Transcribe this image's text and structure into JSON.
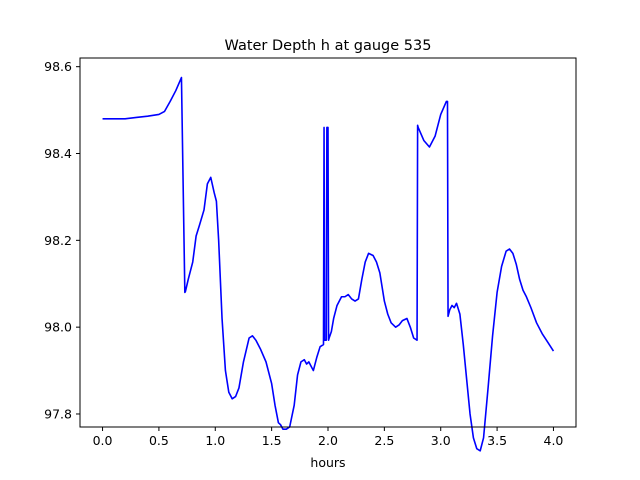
{
  "chart_data": {
    "type": "line",
    "title": "Water Depth h at gauge 535",
    "xlabel": "hours",
    "ylabel": "",
    "xlim": [
      -0.2,
      4.2
    ],
    "ylim": [
      97.77,
      98.62
    ],
    "x_ticks": [
      0.0,
      0.5,
      1.0,
      1.5,
      2.0,
      2.5,
      3.0,
      3.5,
      4.0
    ],
    "x_tick_labels": [
      "0.0",
      "0.5",
      "1.0",
      "1.5",
      "2.0",
      "2.5",
      "3.0",
      "3.5",
      "4.0"
    ],
    "y_ticks": [
      97.8,
      98.0,
      98.2,
      98.4,
      98.6
    ],
    "y_tick_labels": [
      "97.8",
      "98.0",
      "98.2",
      "98.4",
      "98.6"
    ],
    "grid": false,
    "legend": "none",
    "series": [
      {
        "color": "#0000ff",
        "x": [
          0.0,
          0.1,
          0.2,
          0.3,
          0.4,
          0.5,
          0.55,
          0.6,
          0.65,
          0.7,
          0.73,
          0.735,
          0.76,
          0.8,
          0.83,
          0.86,
          0.9,
          0.93,
          0.96,
          0.99,
          1.01,
          1.03,
          1.06,
          1.09,
          1.12,
          1.15,
          1.18,
          1.21,
          1.25,
          1.3,
          1.33,
          1.36,
          1.4,
          1.45,
          1.5,
          1.53,
          1.56,
          1.58,
          1.6,
          1.63,
          1.66,
          1.7,
          1.73,
          1.76,
          1.79,
          1.81,
          1.83,
          1.85,
          1.87,
          1.9,
          1.93,
          1.96,
          1.965,
          1.97,
          1.985,
          1.99,
          2.0,
          2.005,
          2.01,
          2.03,
          2.05,
          2.08,
          2.1,
          2.12,
          2.15,
          2.18,
          2.21,
          2.24,
          2.27,
          2.3,
          2.33,
          2.36,
          2.4,
          2.43,
          2.46,
          2.5,
          2.53,
          2.56,
          2.6,
          2.63,
          2.66,
          2.7,
          2.73,
          2.76,
          2.79,
          2.795,
          2.8,
          2.85,
          2.9,
          2.95,
          3.0,
          3.05,
          3.06,
          3.065,
          3.08,
          3.1,
          3.12,
          3.14,
          3.17,
          3.2,
          3.23,
          3.26,
          3.29,
          3.32,
          3.35,
          3.38,
          3.42,
          3.46,
          3.5,
          3.54,
          3.58,
          3.61,
          3.64,
          3.67,
          3.7,
          3.73,
          3.76,
          3.8,
          3.85,
          3.9,
          3.95,
          4.0
        ],
        "y": [
          98.48,
          98.48,
          98.48,
          98.483,
          98.486,
          98.49,
          98.497,
          98.52,
          98.545,
          98.575,
          98.08,
          98.082,
          98.11,
          98.15,
          98.21,
          98.235,
          98.27,
          98.33,
          98.345,
          98.31,
          98.29,
          98.2,
          98.02,
          97.9,
          97.85,
          97.835,
          97.84,
          97.86,
          97.92,
          97.975,
          97.98,
          97.97,
          97.95,
          97.92,
          97.87,
          97.82,
          97.78,
          97.775,
          97.765,
          97.765,
          97.77,
          97.82,
          97.89,
          97.92,
          97.925,
          97.915,
          97.92,
          97.91,
          97.9,
          97.93,
          97.955,
          97.96,
          98.46,
          97.97,
          97.97,
          98.46,
          98.46,
          97.97,
          97.975,
          97.99,
          98.02,
          98.05,
          98.06,
          98.07,
          98.07,
          98.075,
          98.065,
          98.06,
          98.065,
          98.11,
          98.15,
          98.17,
          98.165,
          98.15,
          98.125,
          98.06,
          98.03,
          98.01,
          98.0,
          98.005,
          98.015,
          98.02,
          98.0,
          97.975,
          97.97,
          98.465,
          98.46,
          98.43,
          98.415,
          98.44,
          98.49,
          98.52,
          98.52,
          98.025,
          98.04,
          98.05,
          98.045,
          98.055,
          98.03,
          97.96,
          97.88,
          97.8,
          97.745,
          97.72,
          97.715,
          97.745,
          97.86,
          97.98,
          98.08,
          98.14,
          98.175,
          98.18,
          98.17,
          98.145,
          98.11,
          98.085,
          98.07,
          98.045,
          98.01,
          97.985,
          97.965,
          97.945
        ]
      }
    ]
  }
}
